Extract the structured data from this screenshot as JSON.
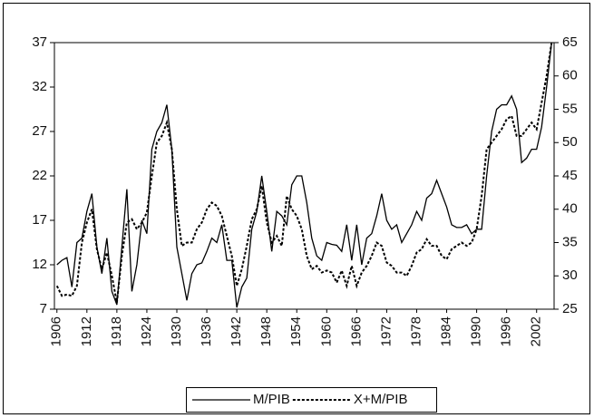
{
  "chart_data": {
    "type": "line",
    "x": [
      1906,
      1907,
      1908,
      1909,
      1910,
      1911,
      1912,
      1913,
      1914,
      1915,
      1916,
      1917,
      1918,
      1919,
      1920,
      1921,
      1922,
      1923,
      1924,
      1925,
      1926,
      1927,
      1928,
      1929,
      1930,
      1931,
      1932,
      1933,
      1934,
      1935,
      1936,
      1937,
      1938,
      1939,
      1940,
      1941,
      1942,
      1943,
      1944,
      1945,
      1946,
      1947,
      1948,
      1949,
      1950,
      1951,
      1952,
      1953,
      1954,
      1955,
      1956,
      1957,
      1958,
      1959,
      1960,
      1961,
      1962,
      1963,
      1964,
      1965,
      1966,
      1967,
      1968,
      1969,
      1970,
      1971,
      1972,
      1973,
      1974,
      1975,
      1976,
      1977,
      1978,
      1979,
      1980,
      1981,
      1982,
      1983,
      1984,
      1985,
      1986,
      1987,
      1988,
      1989,
      1990,
      1991,
      1992,
      1993,
      1994,
      1995,
      1996,
      1997,
      1998,
      1999,
      2000,
      2001,
      2002,
      2003,
      2004,
      2005
    ],
    "xlim": [
      1905.5,
      2005.5
    ],
    "xticks": [
      1906,
      1912,
      1918,
      1924,
      1930,
      1936,
      1942,
      1948,
      1954,
      1960,
      1966,
      1972,
      1978,
      1984,
      1990,
      1996,
      2002
    ],
    "ylim": [
      7,
      37
    ],
    "yticks": [
      7,
      12,
      17,
      22,
      27,
      32,
      37
    ],
    "y2lim": [
      25,
      65
    ],
    "y2ticks": [
      25,
      30,
      35,
      40,
      45,
      50,
      55,
      60,
      65
    ],
    "legend": "bottom",
    "series": [
      {
        "name": "M/PIB",
        "color": "#000000",
        "dash": false,
        "values": [
          12,
          12.5,
          12.8,
          9.5,
          14.5,
          15,
          18,
          20,
          14,
          11,
          15,
          9,
          7.5,
          14,
          20.5,
          9,
          12,
          17,
          15.5,
          25,
          27,
          28,
          30,
          25,
          14,
          11,
          8,
          11,
          12,
          12.2,
          13.5,
          15,
          14.5,
          16.5,
          12.5,
          12.5,
          7.2,
          9.5,
          10.5,
          16,
          18,
          22,
          18,
          13.5,
          18,
          17.5,
          16.5,
          21,
          22,
          22,
          19,
          15,
          13,
          12.5,
          14.5,
          14.3,
          14.2,
          13.5,
          16.5,
          12.5,
          16.5,
          12,
          15,
          15.5,
          17.5,
          20,
          17,
          16,
          16.5,
          14.5,
          15.5,
          16.5,
          18,
          17,
          19.5,
          20,
          21.5,
          20,
          18.5,
          16.5,
          16.2,
          16.2,
          16.5,
          15.5,
          16,
          16,
          22,
          27,
          29.5,
          30,
          30,
          31,
          29.5,
          23.5,
          24,
          25,
          25,
          27.5,
          32,
          37
        ]
      },
      {
        "name": "X+M/PIB",
        "color": "#000000",
        "dash": true,
        "axis": "y2",
        "values": [
          28.5,
          27,
          27.2,
          27,
          28.5,
          35,
          38,
          40,
          34,
          31,
          33.5,
          30,
          26,
          33,
          38,
          38.5,
          37,
          38,
          39.5,
          45,
          50,
          51,
          53,
          49,
          40,
          34.5,
          35,
          35,
          37,
          38,
          40,
          41,
          40.5,
          39,
          36,
          33,
          28.5,
          31,
          34.5,
          38.5,
          40,
          43.5,
          38,
          35,
          36,
          34.5,
          42,
          40,
          39,
          37,
          33,
          31,
          31.5,
          30.5,
          30.8,
          30.5,
          29,
          30.8,
          28.5,
          31.5,
          28.5,
          30.5,
          31.5,
          33,
          35,
          34.5,
          32,
          31.5,
          30.5,
          30.5,
          30,
          31.5,
          33.5,
          34,
          35.5,
          34.5,
          34.5,
          33,
          32.5,
          34,
          34.5,
          35,
          34.5,
          35,
          37,
          42,
          49,
          50,
          51,
          52,
          53.5,
          54,
          51,
          51,
          52,
          53,
          52,
          56,
          60,
          65
        ]
      }
    ]
  }
}
